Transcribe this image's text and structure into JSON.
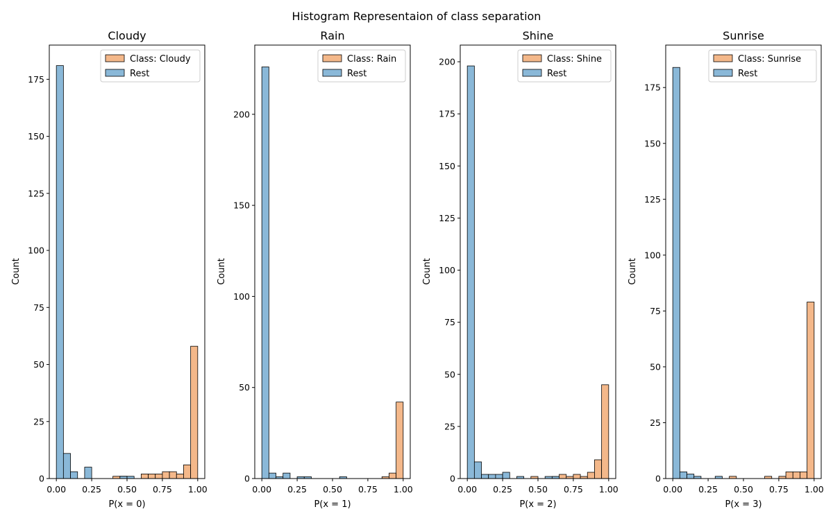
{
  "figure": {
    "suptitle": "Histogram Representaion of class separation"
  },
  "colors": {
    "class": "#f4b88a",
    "rest": "#8ab8d8",
    "edge": "#000000"
  },
  "chart_data": [
    {
      "type": "bar",
      "title": "Cloudy",
      "xlabel": "P(x = 0)",
      "ylabel": "Count",
      "xlim": [
        -0.05,
        1.05
      ],
      "ylim": [
        0,
        190
      ],
      "xticks": [
        "0.00",
        "0.25",
        "0.50",
        "0.75",
        "1.00"
      ],
      "yticks": [
        0,
        25,
        50,
        75,
        100,
        125,
        150,
        175
      ],
      "bin_width": 0.05,
      "legend": {
        "position": "top-right",
        "entries": [
          "Class: Cloudy",
          "Rest"
        ]
      },
      "series": [
        {
          "name": "Class: Cloudy",
          "bin_starts": [
            0.4,
            0.45,
            0.6,
            0.65,
            0.7,
            0.75,
            0.8,
            0.85,
            0.9,
            0.95
          ],
          "counts": [
            1,
            1,
            2,
            2,
            2,
            3,
            3,
            2,
            6,
            58
          ]
        },
        {
          "name": "Rest",
          "bin_starts": [
            0.0,
            0.05,
            0.1,
            0.2,
            0.45,
            0.5
          ],
          "counts": [
            181,
            11,
            3,
            5,
            1,
            1
          ]
        }
      ]
    },
    {
      "type": "bar",
      "title": "Rain",
      "xlabel": "P(x = 1)",
      "ylabel": "Count",
      "xlim": [
        -0.05,
        1.05
      ],
      "ylim": [
        0,
        238
      ],
      "xticks": [
        "0.00",
        "0.25",
        "0.50",
        "0.75",
        "1.00"
      ],
      "yticks": [
        0,
        50,
        100,
        150,
        200
      ],
      "bin_width": 0.05,
      "legend": {
        "position": "top-right",
        "entries": [
          "Class: Rain",
          "Rest"
        ]
      },
      "series": [
        {
          "name": "Class: Rain",
          "bin_starts": [
            0.85,
            0.9,
            0.95
          ],
          "counts": [
            1,
            3,
            42
          ]
        },
        {
          "name": "Rest",
          "bin_starts": [
            0.0,
            0.05,
            0.1,
            0.15,
            0.25,
            0.3,
            0.55
          ],
          "counts": [
            226,
            3,
            1,
            3,
            1,
            1,
            1
          ]
        }
      ]
    },
    {
      "type": "bar",
      "title": "Shine",
      "xlabel": "P(x = 2)",
      "ylabel": "Count",
      "xlim": [
        -0.05,
        1.05
      ],
      "ylim": [
        0,
        208
      ],
      "xticks": [
        "0.00",
        "0.25",
        "0.50",
        "0.75",
        "1.00"
      ],
      "yticks": [
        0,
        25,
        50,
        75,
        100,
        125,
        150,
        175,
        200
      ],
      "bin_width": 0.05,
      "legend": {
        "position": "top-right",
        "entries": [
          "Class: Shine",
          "Rest"
        ]
      },
      "series": [
        {
          "name": "Class: Shine",
          "bin_starts": [
            0.45,
            0.6,
            0.65,
            0.7,
            0.75,
            0.8,
            0.85,
            0.9,
            0.95
          ],
          "counts": [
            1,
            1,
            2,
            1,
            2,
            1,
            3,
            9,
            45
          ]
        },
        {
          "name": "Rest",
          "bin_starts": [
            0.0,
            0.05,
            0.1,
            0.15,
            0.2,
            0.25,
            0.35,
            0.55,
            0.6
          ],
          "counts": [
            198,
            8,
            2,
            2,
            2,
            3,
            1,
            1,
            1
          ]
        }
      ]
    },
    {
      "type": "bar",
      "title": "Sunrise",
      "xlabel": "P(x = 3)",
      "ylabel": "Count",
      "xlim": [
        -0.05,
        1.05
      ],
      "ylim": [
        0,
        194
      ],
      "xticks": [
        "0.00",
        "0.25",
        "0.50",
        "0.75",
        "1.00"
      ],
      "yticks": [
        0,
        25,
        50,
        75,
        100,
        125,
        150,
        175
      ],
      "bin_width": 0.05,
      "legend": {
        "position": "top-right",
        "entries": [
          "Class: Sunrise",
          "Rest"
        ]
      },
      "series": [
        {
          "name": "Class: Sunrise",
          "bin_starts": [
            0.4,
            0.65,
            0.75,
            0.8,
            0.85,
            0.9,
            0.95
          ],
          "counts": [
            1,
            1,
            1,
            3,
            3,
            3,
            79
          ]
        },
        {
          "name": "Rest",
          "bin_starts": [
            0.0,
            0.05,
            0.1,
            0.15,
            0.3
          ],
          "counts": [
            184,
            3,
            2,
            1,
            1
          ]
        }
      ]
    }
  ]
}
